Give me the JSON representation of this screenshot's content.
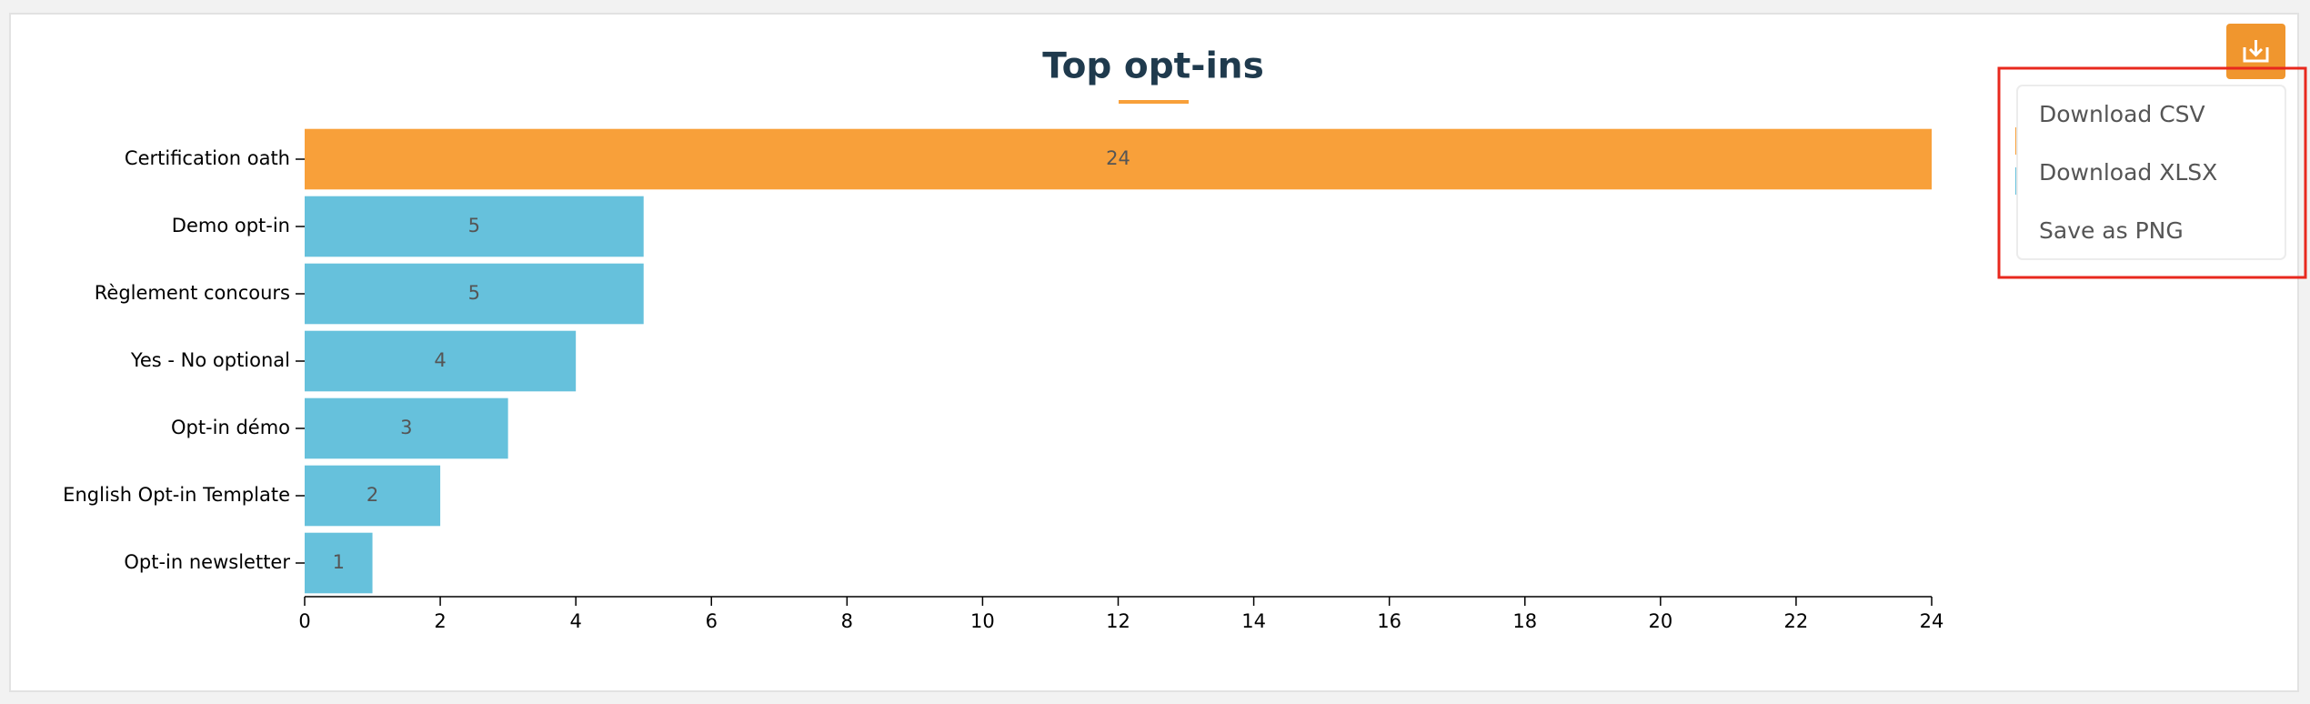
{
  "chart_data": {
    "type": "hbar",
    "title": "Top opt-ins",
    "categories": [
      "Certification oath",
      "Demo opt-in",
      "Règlement concours",
      "Yes - No optional",
      "Opt-in démo",
      "English Opt-in Template",
      "Opt-in newsletter"
    ],
    "values": [
      24,
      5,
      5,
      4,
      3,
      2,
      1
    ],
    "colors": [
      "#f8a03a",
      "#66c1dc",
      "#66c1dc",
      "#66c1dc",
      "#66c1dc",
      "#66c1dc",
      "#66c1dc"
    ],
    "xlim": [
      0,
      24
    ],
    "xticks": [
      0,
      2,
      4,
      6,
      8,
      10,
      12,
      14,
      16,
      18,
      20,
      22,
      24
    ]
  },
  "menu": [
    "Download CSV",
    "Download XLSX",
    "Save as PNG"
  ]
}
